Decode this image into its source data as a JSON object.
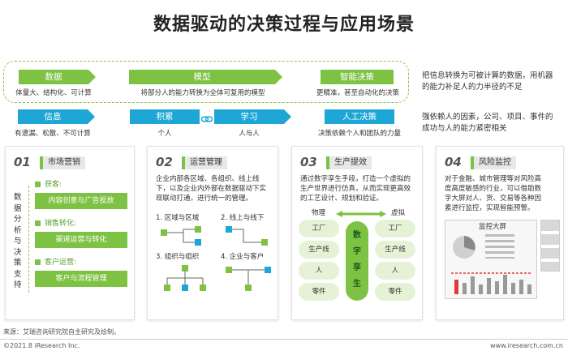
{
  "title": "数据驱动的决策过程与应用场景",
  "row1": {
    "data": {
      "label": "数据",
      "sub": "体量大、结构化、可计算"
    },
    "model": {
      "label": "模型",
      "sub": "将部分人的能力转换为全体可复用的模型"
    },
    "smart": {
      "label": "智能决策",
      "sub": "更精准，甚至自动化的决策"
    },
    "note": "把信息转换为可被计算的数据，用机器的能力补足人的力半径的不足"
  },
  "row2": {
    "info": {
      "label": "信息",
      "sub": "有遗漏、松散、不可计算"
    },
    "accum": {
      "label": "积累",
      "sub": "个人"
    },
    "learn": {
      "label": "学习",
      "sub": "人与人"
    },
    "human": {
      "label": "人工决策",
      "sub": "决策依赖个人和团队的力量"
    },
    "note": "强依赖人的因素，公司、项目、事件的成功与人的能力紧密相关"
  },
  "panel1": {
    "num": "01",
    "tag": "市场营销",
    "vertical": "数据分析与决策支持",
    "items": [
      {
        "head": "获客:",
        "box": "内容创意与广告投放"
      },
      {
        "head": "销售转化:",
        "box": "渠道运营与转化"
      },
      {
        "head": "客户运营:",
        "box": "客户与流程管理"
      }
    ]
  },
  "panel2": {
    "num": "02",
    "tag": "运营管理",
    "text": "企业内部各区域、各组织、线上线下，以及企业内外部在数据驱动下实现联动打通，进行统一的管理。",
    "diagrams": [
      "1. 区域与区域",
      "2. 线上与线下",
      "3. 组织与组织",
      "4. 企业与客户"
    ]
  },
  "panel3": {
    "num": "03",
    "tag": "生产提效",
    "text": "通过数字孪生手段，打造一个虚拟的生产世界进行仿真，从而实现更高效的工艺设计、规划和验证。",
    "left_head": "物理",
    "right_head": "虚拟",
    "left": [
      "工厂",
      "生产线",
      "人",
      "零件"
    ],
    "right": [
      "工厂",
      "生产线",
      "人",
      "零件"
    ],
    "center": "数字孪生"
  },
  "panel4": {
    "num": "04",
    "tag": "风险监控",
    "text": "对于金融、城市管理等对风险高度高度敏感的行业，可以借助数字大屏对人、货、交易等各种因素进行监控，实现智能预警。",
    "screen": "监控大屏"
  },
  "footer": {
    "source": "来源：艾瑞咨询研究院自主研究及绘制。",
    "copyright": "©2021.8 iResearch Inc.",
    "site": "www.iresearch.com.cn"
  },
  "colors": {
    "green": "#7dc243",
    "blue": "#1ea7d6",
    "lightgreen": "#e6f2d6"
  }
}
